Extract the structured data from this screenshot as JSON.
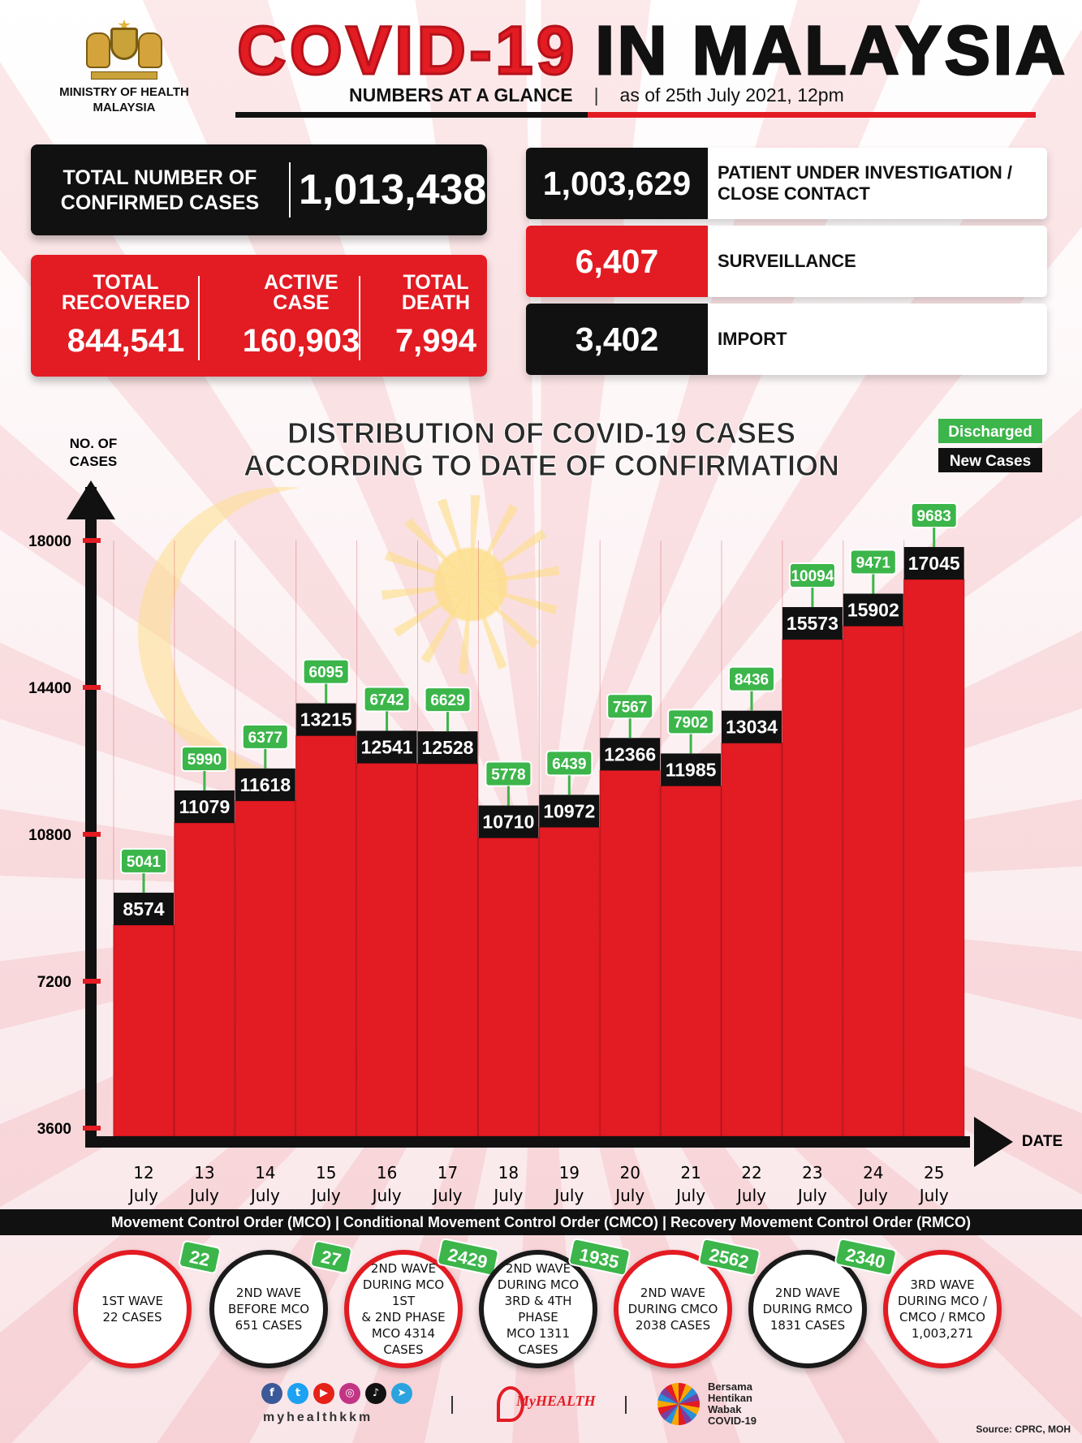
{
  "header": {
    "ministry_line1": "MINISTRY OF HEALTH",
    "ministry_line2": "MALAYSIA",
    "title_red": "COVID-19",
    "title_black": "IN MALAYSIA",
    "subtitle": "NUMBERS AT A GLANCE",
    "separator": "|",
    "as_of": "as of 25th July 2021, 12pm"
  },
  "totals": {
    "confirmed_label_1": "TOTAL NUMBER OF",
    "confirmed_label_2": "CONFIRMED CASES",
    "confirmed_value": "1,013,438",
    "recovered_label_1": "TOTAL",
    "recovered_label_2": "RECOVERED",
    "recovered_value": "844,541",
    "active_label_1": "ACTIVE",
    "active_label_2": "CASE",
    "active_value": "160,903",
    "death_label_1": "TOTAL",
    "death_label_2": "DEATH",
    "death_value": "7,994"
  },
  "breakdown": [
    {
      "value": "1,003,629",
      "label": "PATIENT UNDER INVESTIGATION / CLOSE CONTACT",
      "color": "#111111"
    },
    {
      "value": "6,407",
      "label": "SURVEILLANCE",
      "color": "#e31b23"
    },
    {
      "value": "3,402",
      "label": "IMPORT",
      "color": "#111111"
    }
  ],
  "chart_data": {
    "type": "bar",
    "title": [
      "DISTRIBUTION OF COVID-19 CASES",
      "ACCORDING TO DATE OF CONFIRMATION"
    ],
    "ylabel": [
      "NO. OF",
      "CASES"
    ],
    "xlabel": "DATE",
    "yticks": [
      3600,
      7200,
      10800,
      14400,
      18000
    ],
    "ylim": [
      3600,
      18000
    ],
    "legend": [
      {
        "name": "Discharged",
        "color": "#3cb54a"
      },
      {
        "name": "New Cases",
        "color": "#111111"
      }
    ],
    "legend_position": "top-right",
    "categories": [
      "12",
      "13",
      "14",
      "15",
      "16",
      "17",
      "18",
      "19",
      "20",
      "21",
      "22",
      "23",
      "24",
      "25"
    ],
    "category_suffix": "July",
    "series": [
      {
        "name": "New Cases",
        "values": [
          8574,
          11079,
          11618,
          13215,
          12541,
          12528,
          10710,
          10972,
          12366,
          11985,
          13034,
          15573,
          15902,
          17045
        ]
      },
      {
        "name": "Discharged",
        "values": [
          5041,
          5990,
          6377,
          6095,
          6742,
          6629,
          5778,
          6439,
          7567,
          7902,
          8436,
          10094,
          9471,
          9683
        ]
      }
    ],
    "bar_color": "#e31b23"
  },
  "order_stripe": "Movement Control Order (MCO) | Conditional Movement Control Order (CMCO) | Recovery Movement Control Order (RMCO)",
  "waves": [
    {
      "text": "1ST WAVE\n22 CASES",
      "badge": "22"
    },
    {
      "text": "2ND WAVE\nBEFORE MCO\n651 CASES",
      "badge": "27"
    },
    {
      "text": "2ND WAVE\nDURING MCO 1ST\n& 2ND PHASE\nMCO 4314\nCASES",
      "badge": "2429"
    },
    {
      "text": "2ND WAVE\nDURING MCO\n3RD & 4TH PHASE\nMCO 1311\nCASES",
      "badge": "1935"
    },
    {
      "text": "2ND WAVE\nDURING CMCO\n2038 CASES",
      "badge": "2562"
    },
    {
      "text": "2ND WAVE\nDURING RMCO\n1831 CASES",
      "badge": "2340"
    },
    {
      "text": "3RD WAVE\nDURING MCO /\nCMCO / RMCO\n1,003,271",
      "badge": ""
    }
  ],
  "footer": {
    "handle": "myhealthkkm",
    "myhealth": "MyHEALTH",
    "bersama": "Bersama\nHentikan\nWabak\nCOVID-19",
    "source": "Source: CPRC, MOH",
    "social_icons": [
      "facebook-icon",
      "twitter-icon",
      "youtube-icon",
      "instagram-icon",
      "tiktok-icon",
      "telegram-icon"
    ]
  }
}
